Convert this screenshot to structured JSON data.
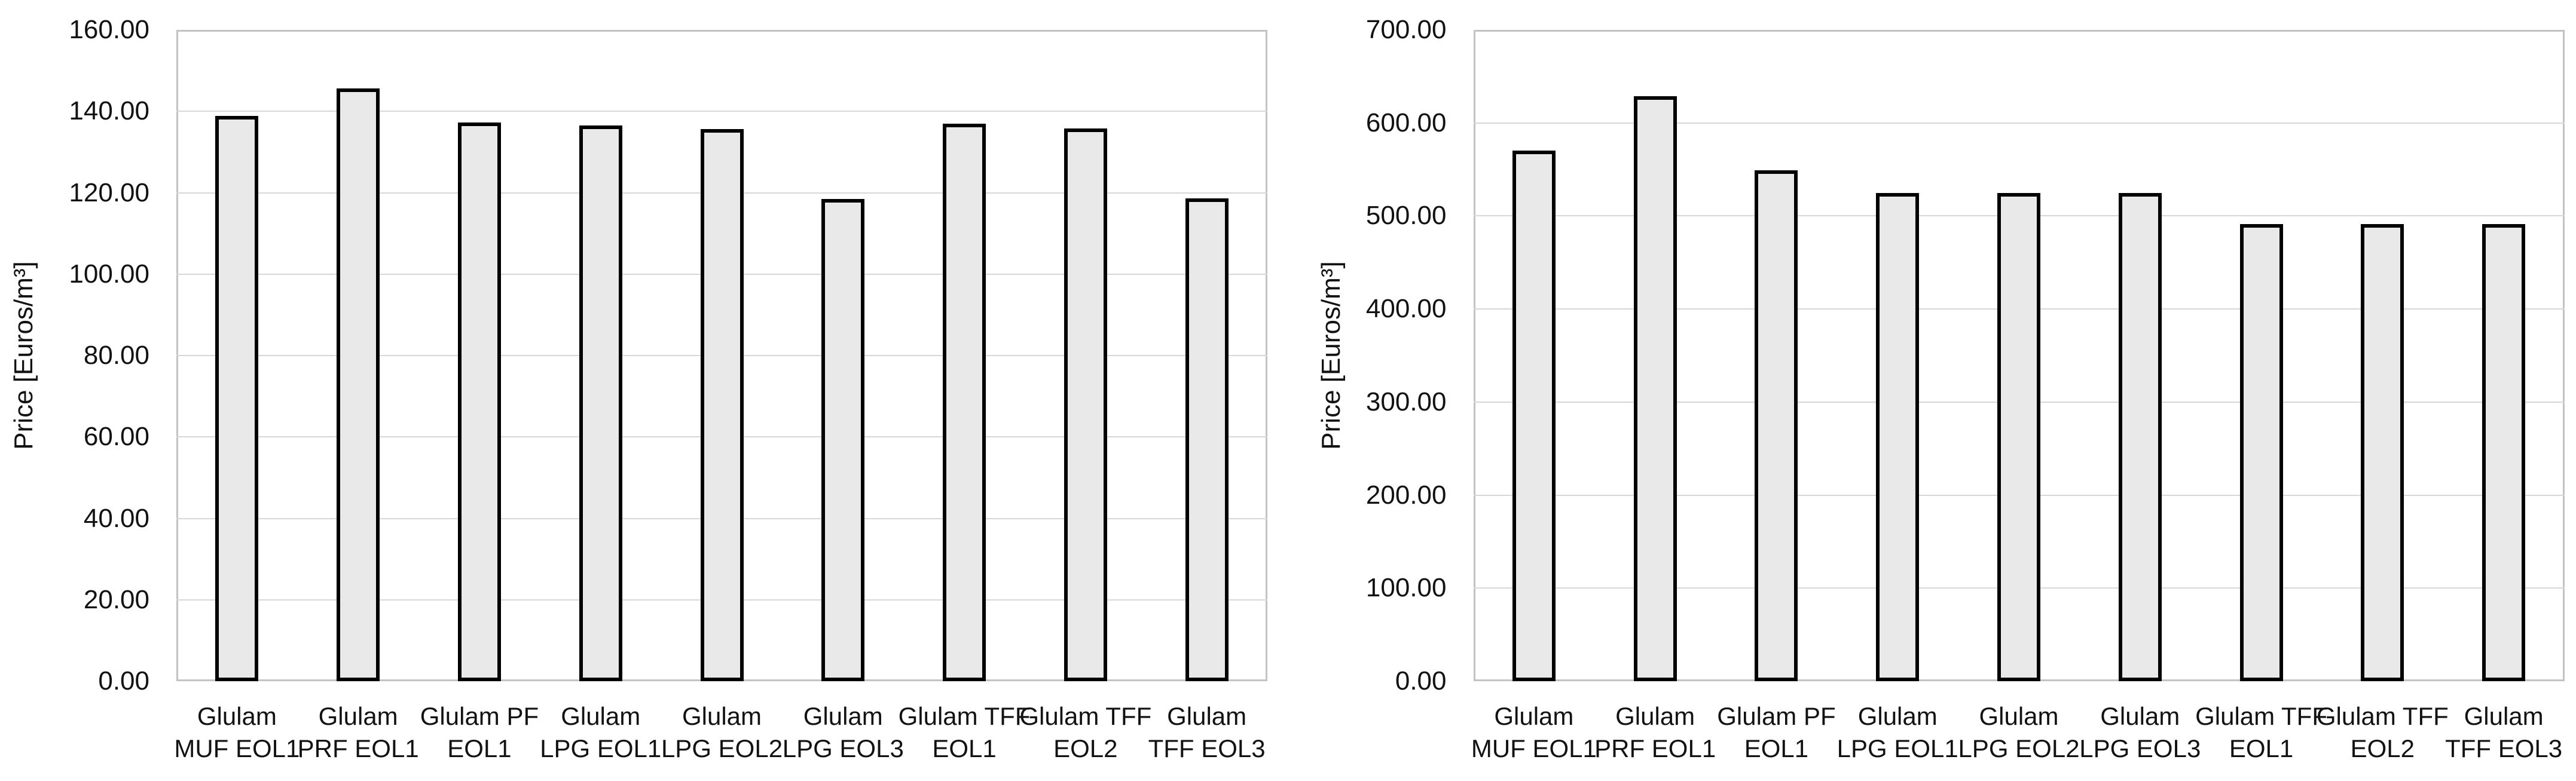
{
  "figure": {
    "background": "#ffffff",
    "description": "Two vertical bar charts comparing price per cubic metre of glulam produced with different adhesives (MUF, PRF, PF, LPG, TFF) under end-of-life scenarios EOL1-EOL3"
  },
  "colors": {
    "bar_fill": "#e9e9e9",
    "bar_border": "#000000",
    "gridline": "#d7d7d7",
    "plot_border": "#c3c3c3",
    "text": "#121212"
  },
  "chart_data": [
    {
      "type": "bar",
      "title": "",
      "xlabel": "",
      "ylabel": "Price [Euros/m³]",
      "ylim": [
        0,
        160
      ],
      "ytick_step": 20,
      "yticks": [
        "0.00",
        "20.00",
        "40.00",
        "60.00",
        "80.00",
        "100.00",
        "120.00",
        "140.00",
        "160.00"
      ],
      "grid": true,
      "legend": "none",
      "categories": [
        "Glulam MUF EOL1",
        "Glulam PRF EOL1",
        "Glulam PF EOL1",
        "Glulam LPG EOL1",
        "Glulam LPG EOL2",
        "Glulam LPG EOL3",
        "Glulam TFF EOL1",
        "Glulam TFF EOL2",
        "Glulam TFF EOL3"
      ],
      "category_lines": [
        [
          "Glulam",
          "MUF EOL1"
        ],
        [
          "Glulam",
          "PRF EOL1"
        ],
        [
          "Glulam PF",
          "EOL1"
        ],
        [
          "Glulam",
          "LPG EOL1"
        ],
        [
          "Glulam",
          "LPG EOL2"
        ],
        [
          "Glulam",
          "LPG EOL3"
        ],
        [
          "Glulam TFF",
          "EOL1"
        ],
        [
          "Glulam TFF",
          "EOL2"
        ],
        [
          "Glulam",
          "TFF EOL3"
        ]
      ],
      "values": [
        138.9,
        145.6,
        137.3,
        136.5,
        135.6,
        118.4,
        137.0,
        135.8,
        118.6
      ]
    },
    {
      "type": "bar",
      "title": "",
      "xlabel": "",
      "ylabel": "Price [Euros/m³]",
      "ylim": [
        0,
        700
      ],
      "ytick_step": 100,
      "yticks": [
        "0.00",
        "100.00",
        "200.00",
        "300.00",
        "400.00",
        "500.00",
        "600.00",
        "700.00"
      ],
      "grid": true,
      "legend": "none",
      "categories": [
        "Glulam MUF EOL1",
        "Glulam PRF EOL1",
        "Glulam PF EOL1",
        "Glulam LPG EOL1",
        "Glulam LPG EOL2",
        "Glulam LPG EOL3",
        "Glulam TFF EOL1",
        "Glulam TFF EOL2",
        "Glulam TFF EOL3"
      ],
      "category_lines": [
        [
          "Glulam",
          "MUF EOL1"
        ],
        [
          "Glulam",
          "PRF EOL1"
        ],
        [
          "Glulam PF",
          "EOL1"
        ],
        [
          "Glulam",
          "LPG EOL1"
        ],
        [
          "Glulam",
          "LPG EOL2"
        ],
        [
          "Glulam",
          "LPG EOL3"
        ],
        [
          "Glulam TFF",
          "EOL1"
        ],
        [
          "Glulam TFF",
          "EOL2"
        ],
        [
          "Glulam",
          "TFF EOL3"
        ]
      ],
      "values": [
        570,
        629,
        549,
        525,
        525,
        525,
        491,
        491,
        491
      ]
    }
  ]
}
